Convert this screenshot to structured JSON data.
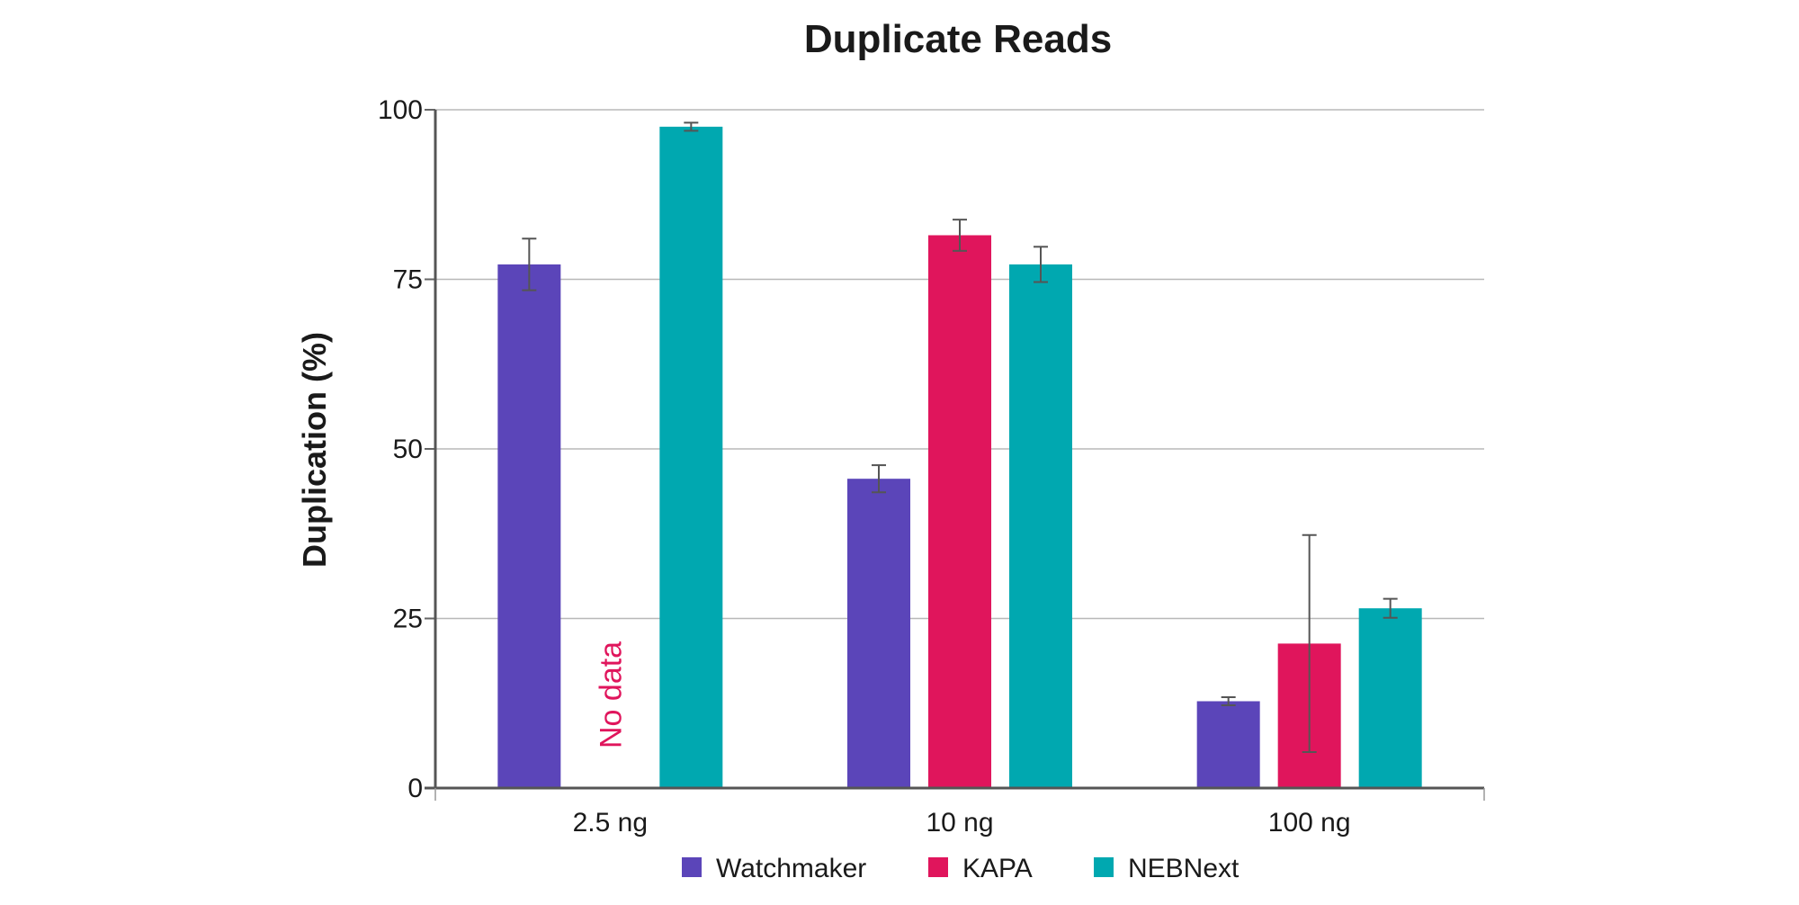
{
  "chart_data": {
    "type": "bar",
    "title": "Duplicate Reads",
    "xlabel": "",
    "ylabel": "Duplication (%)",
    "ylim": [
      0,
      100
    ],
    "yticks": [
      "0",
      "25",
      "50",
      "75",
      "100"
    ],
    "grid": true,
    "legend_position": "bottom-center",
    "categories": [
      "2.5 ng",
      "10 ng",
      "100 ng"
    ],
    "series": [
      {
        "name": "Watchmaker",
        "color": "#5b45b9",
        "values": [
          77.2,
          45.6,
          12.8
        ],
        "errors": [
          3.8,
          2.0,
          0.6
        ]
      },
      {
        "name": "KAPA",
        "color": "#e0155c",
        "values": [
          null,
          81.5,
          21.3
        ],
        "errors": [
          null,
          2.3,
          16.0
        ]
      },
      {
        "name": "NEBNext",
        "color": "#00a8b0",
        "values": [
          97.5,
          77.2,
          26.5
        ],
        "errors": [
          0.6,
          2.6,
          1.4
        ]
      }
    ],
    "annotations": [
      {
        "text": "No data",
        "category": "2.5 ng",
        "series": "KAPA",
        "color": "#e0155c"
      }
    ]
  }
}
